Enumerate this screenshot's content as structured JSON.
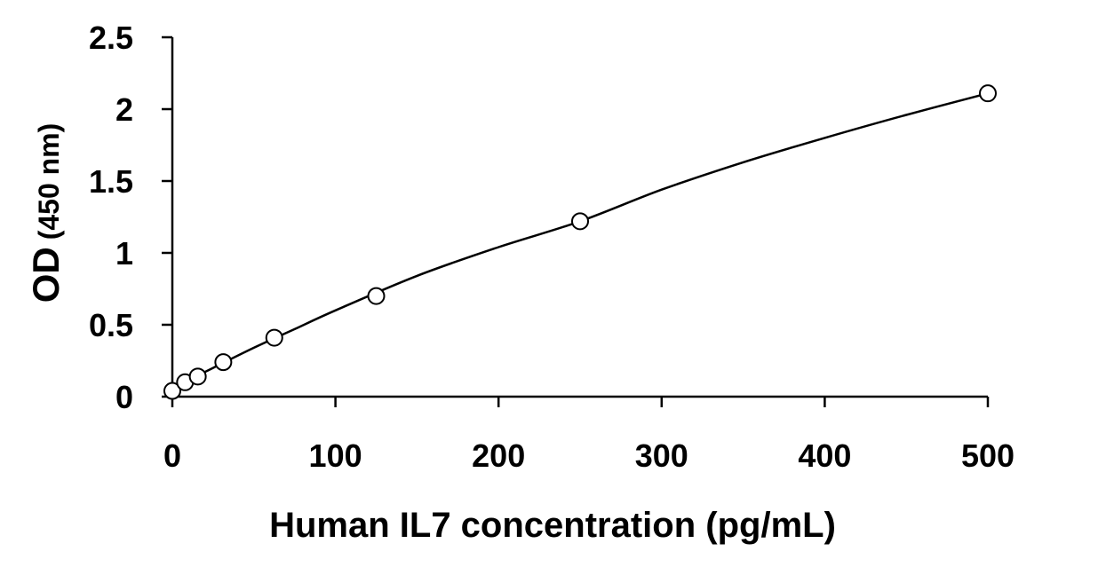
{
  "chart_data": {
    "type": "scatter",
    "xlabel": "Human IL7 concentration (pg/mL)",
    "ylabel_main": "OD",
    "ylabel_sub": "(450 nm)",
    "xlim": [
      0,
      500
    ],
    "ylim": [
      0,
      2.5
    ],
    "xticks": [
      0,
      100,
      200,
      300,
      400,
      500
    ],
    "xtick_labels": [
      "0",
      "100",
      "200",
      "300",
      "400",
      "500"
    ],
    "yticks": [
      0,
      0.5,
      1,
      1.5,
      2,
      2.5
    ],
    "ytick_labels": [
      "0",
      "0.5",
      "1",
      "1.5",
      "2",
      "2.5"
    ],
    "grid": false,
    "series": [
      {
        "marker": "open-circle",
        "x": [
          0,
          7.8,
          15.6,
          31.25,
          62.5,
          125,
          250,
          500
        ],
        "y": [
          0.04,
          0.1,
          0.14,
          0.24,
          0.41,
          0.7,
          1.22,
          2.11
        ]
      }
    ],
    "fit_curve": {
      "x": [
        0,
        25,
        50,
        75,
        100,
        150,
        200,
        250,
        300,
        350,
        400,
        450,
        500
      ],
      "y": [
        0.06,
        0.2,
        0.34,
        0.47,
        0.6,
        0.84,
        1.04,
        1.22,
        1.44,
        1.63,
        1.8,
        1.96,
        2.11
      ]
    }
  }
}
